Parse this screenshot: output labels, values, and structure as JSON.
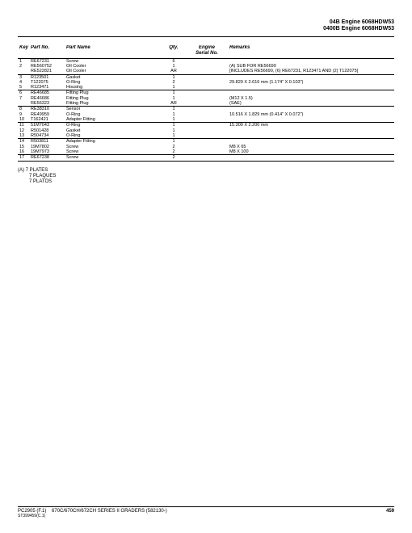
{
  "header": {
    "line1": "04B Engine 6068HDW53",
    "line2": "0400B Engine 6068HDW53"
  },
  "columns": {
    "key": "Key",
    "part_no": "Part No.",
    "part_name": "Part Name",
    "qty": "Qty.",
    "engine_serial_top": "Engine",
    "engine_serial_bot": "Serial No.",
    "remarks": "Remarks"
  },
  "rows": [
    {
      "key": "1",
      "part": "RE67231",
      "name": "Screw",
      "qty": "6",
      "rem": ""
    },
    {
      "key": "2",
      "part": "RE560752",
      "name": "Oil Cooler",
      "qty": "1",
      "rem": "(A) SUB FOR RE56690"
    },
    {
      "key": "",
      "part": "RE522821",
      "name": "Oil Cooler",
      "qty": "AR",
      "rem": "[INCLUDES RE56690, (6) RE67231, R123471 AND (2) T122075]",
      "rule": true
    },
    {
      "key": "3",
      "part": "R123501",
      "name": "Gasket",
      "qty": "1",
      "rem": ""
    },
    {
      "key": "4",
      "part": "T122075",
      "name": "O-Ring",
      "qty": "2",
      "rem": "29.820 X 2.616 mm (1.174\" X 0.103\")"
    },
    {
      "key": "5",
      "part": "R123471",
      "name": "Housing",
      "qty": "1",
      "rem": "",
      "rule": true
    },
    {
      "key": "6",
      "part": "RE46685",
      "name": "Fitting Plug",
      "qty": "1",
      "rem": ""
    },
    {
      "key": "7",
      "part": "RE46686",
      "name": "Fitting Plug",
      "qty": "1",
      "rem": "(M12 X 1.5)"
    },
    {
      "key": "",
      "part": "RE56323",
      "name": "Fitting Plug",
      "qty": "AR",
      "rem": "(SAE)",
      "rule": true
    },
    {
      "key": "8",
      "part": "RE38310",
      "name": "Sensor",
      "qty": "1",
      "rem": ""
    },
    {
      "key": "9",
      "part": "RE49959",
      "name": "O-Ring",
      "qty": "1",
      "rem": "10.516 X 1.829 mm (0.414\" X 0.072\")"
    },
    {
      "key": "10",
      "part": "T162421",
      "name": "Adapter Fitting",
      "qty": "1",
      "rem": "",
      "rule": true
    },
    {
      "key": "11",
      "part": "51M7043",
      "name": "O-Ring",
      "qty": "1",
      "rem": "15.300 X 2.200 mm"
    },
    {
      "key": "12",
      "part": "R501428",
      "name": "Gasket",
      "qty": "1",
      "rem": ""
    },
    {
      "key": "13",
      "part": "R504734",
      "name": "O-Ring",
      "qty": "1",
      "rem": "",
      "rule": true
    },
    {
      "key": "14",
      "part": "R503811",
      "name": "Adapter Fitting",
      "qty": "1",
      "rem": ""
    },
    {
      "key": "15",
      "part": "19M7802",
      "name": "Screw",
      "qty": "2",
      "rem": "M8 X 65"
    },
    {
      "key": "16",
      "part": "19M7973",
      "name": "Screw",
      "qty": "2",
      "rem": "M8 X 100",
      "rule": true
    },
    {
      "key": "17",
      "part": "RE67238",
      "name": "Screw",
      "qty": "2",
      "rem": "",
      "rule": true
    }
  ],
  "footnotes": {
    "l1": "(A) 7 PLATES",
    "l2": "7 PLAQUES",
    "l3": "7 PLATOS"
  },
  "footer": {
    "left_code": "PC2905   (F.1)",
    "left_title": "670C/670CH/672CH SERIES II GRADERS (582130-)",
    "sub": "ST399459(C.1)",
    "page": "459"
  }
}
